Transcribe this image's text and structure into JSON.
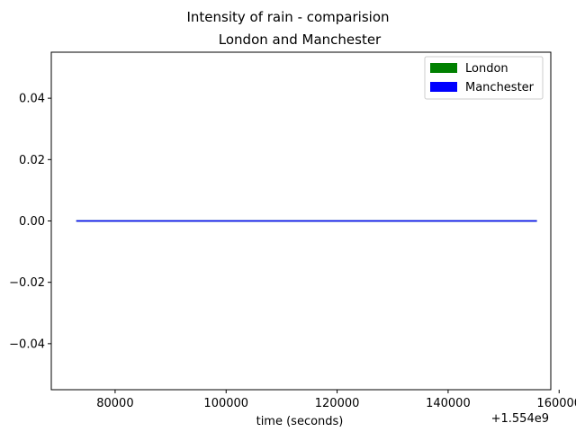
{
  "chart_data": {
    "type": "line",
    "title": "Intensity of rain - comparision",
    "subtitle": "London and Manchester",
    "xlabel": "time (seconds)",
    "ylabel": "",
    "x_offset_label": "+1.554e9",
    "xlim": [
      68500,
      158500
    ],
    "ylim": [
      -0.055,
      0.055
    ],
    "x_ticks": [
      80000,
      100000,
      120000,
      140000,
      160000
    ],
    "x_tick_labels": [
      "80000",
      "100000",
      "120000",
      "140000",
      "160000"
    ],
    "y_ticks": [
      0.04,
      0.02,
      0.0,
      -0.02,
      -0.04
    ],
    "y_tick_labels": [
      "0.04",
      "0.02",
      "0.00",
      "−0.02",
      "−0.04"
    ],
    "grid": false,
    "legend_position": "top-right",
    "series": [
      {
        "name": "London",
        "color": "#008000",
        "x": [
          73000,
          156000
        ],
        "y": [
          0,
          0
        ]
      },
      {
        "name": "Manchester",
        "color": "#0000ff",
        "x": [
          73000,
          156000
        ],
        "y": [
          0,
          0
        ]
      }
    ]
  }
}
